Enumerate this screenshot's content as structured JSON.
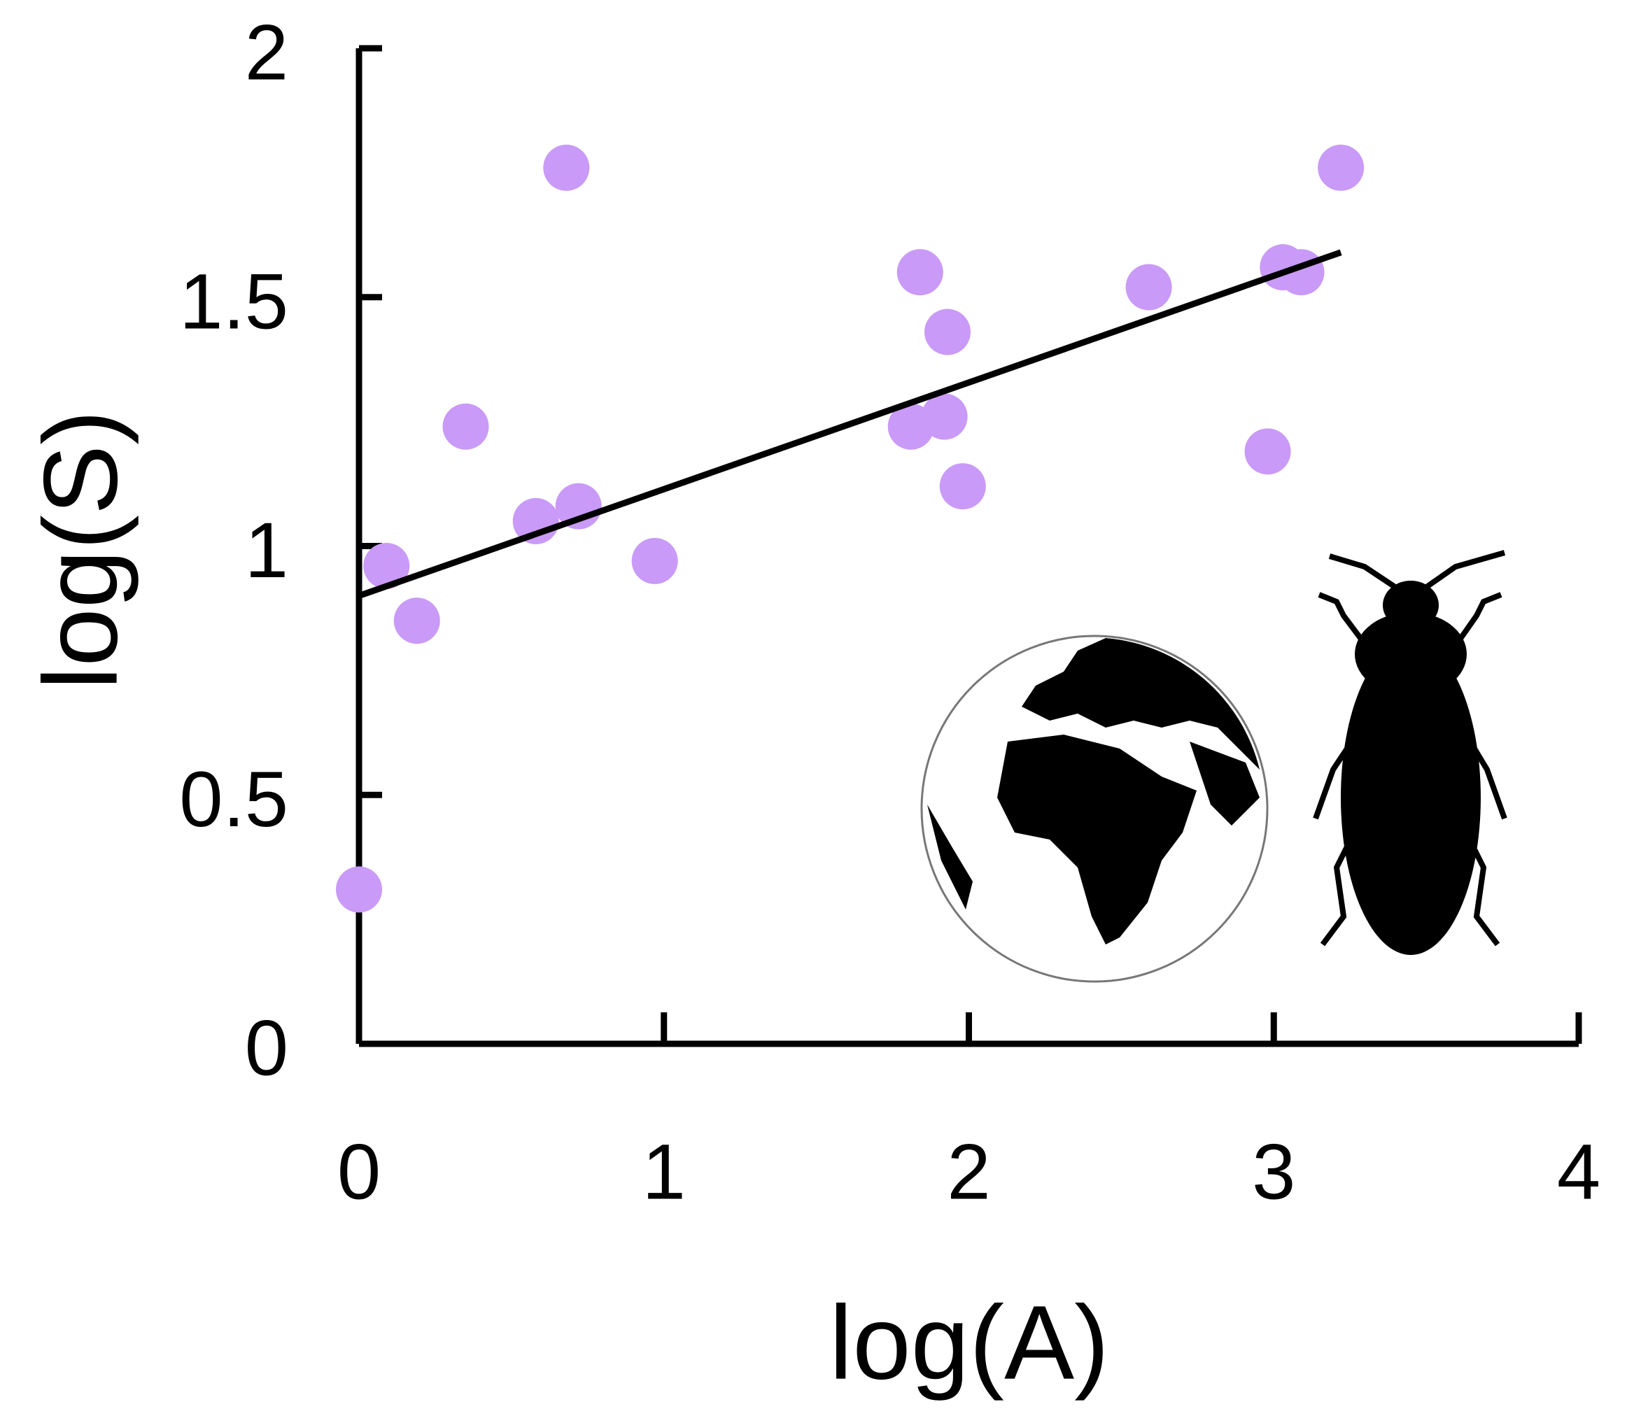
{
  "chart_data": {
    "type": "scatter",
    "x_label": "log(A)",
    "y_label": "log(S)",
    "x": [
      0,
      0.09,
      0.19,
      0.35,
      0.68,
      0.58,
      0.72,
      0.97,
      1.84,
      1.93,
      1.81,
      1.92,
      1.98,
      2.59,
      2.98,
      3.03,
      3.09,
      3.22
    ],
    "y": [
      0.31,
      0.96,
      0.85,
      1.24,
      1.76,
      1.05,
      1.08,
      0.97,
      1.55,
      1.43,
      1.24,
      1.26,
      1.12,
      1.52,
      1.19,
      1.56,
      1.55,
      1.76
    ],
    "color": "#c99af7",
    "fit": {
      "x": [
        0,
        3.22
      ],
      "y": [
        0.9,
        1.59
      ],
      "color": "#000000"
    },
    "xlim": [
      0,
      4
    ],
    "ylim": [
      0,
      2
    ],
    "xticks": [
      0,
      1,
      2,
      3,
      4
    ],
    "yticks": [
      0,
      0.5,
      1,
      1.5,
      2
    ]
  }
}
